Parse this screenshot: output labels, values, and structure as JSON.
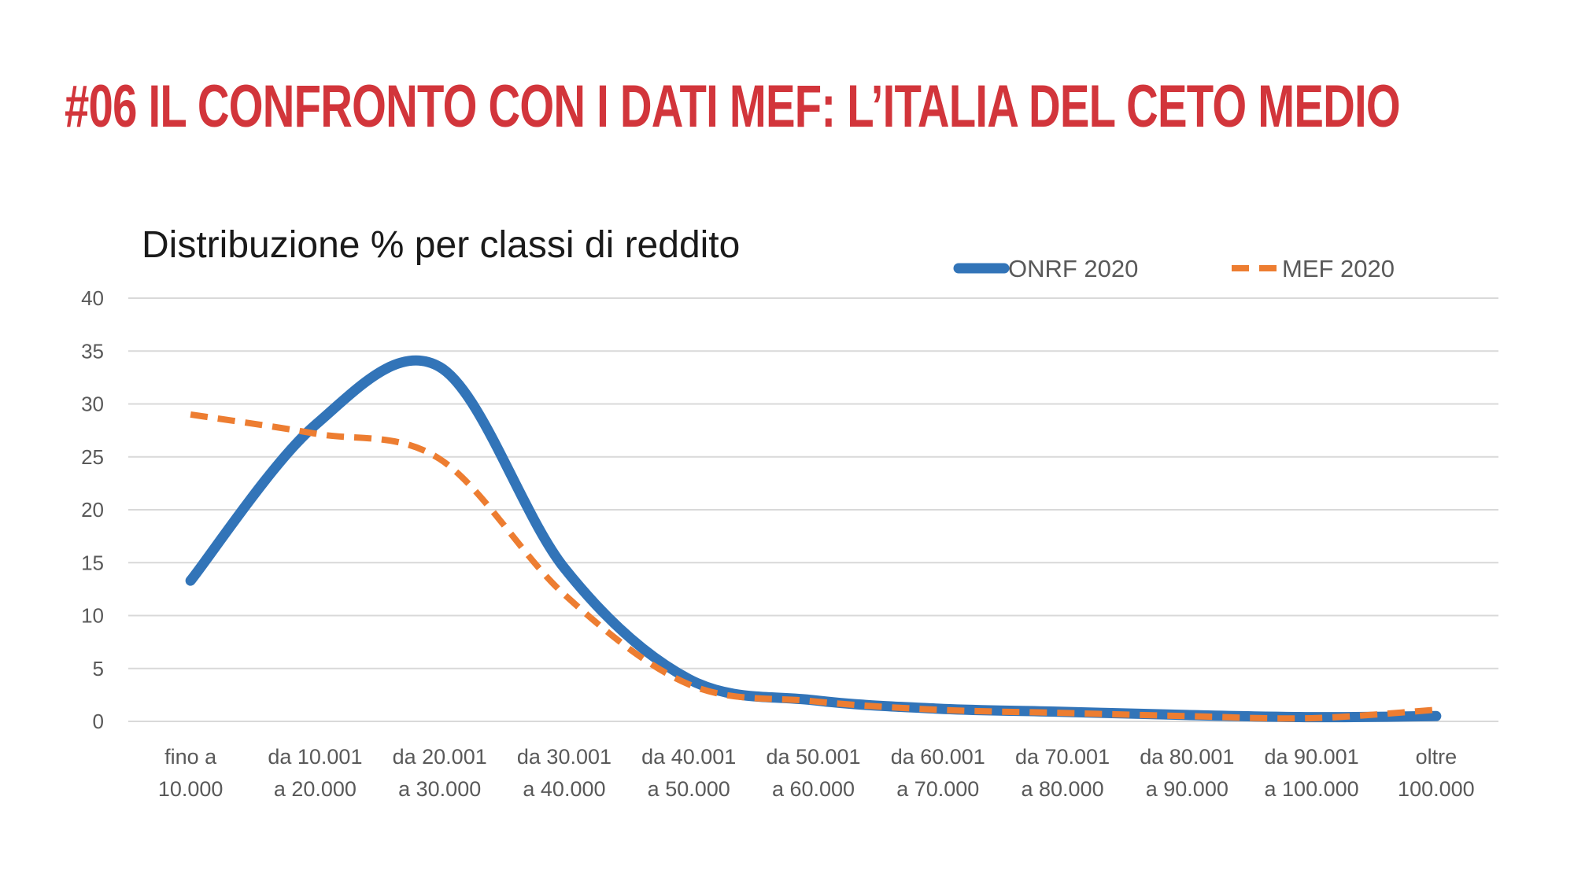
{
  "slide": {
    "title": "#06 Il confronto con i dati MEF: l’Italia del ceto medio"
  },
  "colors": {
    "title": "#d2353b",
    "onrf": "#3274b8",
    "mef": "#ed7d31",
    "grid": "#d9d9d9",
    "text": "#595959"
  },
  "chart_data": {
    "type": "line",
    "title": "Distribuzione % per classi di reddito",
    "xlabel": "",
    "ylabel": "",
    "ylim": [
      0,
      40
    ],
    "yticks": [
      0,
      5,
      10,
      15,
      20,
      25,
      30,
      35,
      40
    ],
    "grid": true,
    "smooth": true,
    "legend_position": "top-right",
    "categories": [
      [
        "fino a",
        "10.000"
      ],
      [
        "da 10.001",
        "a 20.000"
      ],
      [
        "da 20.001",
        "a 30.000"
      ],
      [
        "da 30.001",
        "a 40.000"
      ],
      [
        "da 40.001",
        "a 50.000"
      ],
      [
        "da 50.001",
        "a 60.000"
      ],
      [
        "da 60.001",
        "a 70.000"
      ],
      [
        "da 70.001",
        "a 80.000"
      ],
      [
        "da 80.001",
        "a 90.000"
      ],
      [
        "da 90.001",
        "a 100.000"
      ],
      [
        "oltre",
        "100.000"
      ]
    ],
    "series": [
      {
        "name": "ONRF 2020",
        "style": "solid",
        "values": [
          13.3,
          28.0,
          33.5,
          14.5,
          4.0,
          2.0,
          1.2,
          0.9,
          0.6,
          0.4,
          0.5
        ]
      },
      {
        "name": "MEF 2020",
        "style": "dashed",
        "values": [
          29.0,
          27.2,
          24.8,
          12.0,
          3.5,
          1.9,
          1.1,
          0.8,
          0.5,
          0.3,
          1.1
        ]
      }
    ]
  }
}
